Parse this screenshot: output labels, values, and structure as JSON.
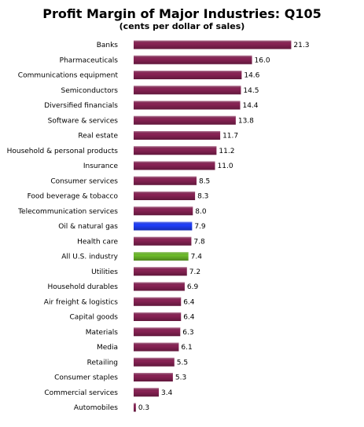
{
  "chart_data": {
    "type": "bar",
    "orientation": "horizontal",
    "title": "Profit Margin of Major Industries: Q105",
    "subtitle": "(cents per dollar of sales)",
    "xlim": [
      0,
      22
    ],
    "grid": false,
    "legend": "none",
    "colors": {
      "default": "#8b2356",
      "highlight_oil": "#1f3fff",
      "highlight_all": "#6fbf2a"
    },
    "categories": [
      "Banks",
      "Pharmaceuticals",
      "Communications equipment",
      "Semiconductors",
      "Diversified financials",
      "Software & services",
      "Real estate",
      "Household & personal products",
      "Insurance",
      "Consumer services",
      "Food beverage & tobacco",
      "Telecommunication services",
      "Oil & natural gas",
      "Health care",
      "All U.S. industry",
      "Utilities",
      "Household durables",
      "Air freight & logistics",
      "Capital goods",
      "Materials",
      "Media",
      "Retailing",
      "Consumer staples",
      "Commercial services",
      "Automobiles"
    ],
    "values": [
      21.3,
      16.0,
      14.6,
      14.5,
      14.4,
      13.8,
      11.7,
      11.2,
      11.0,
      8.5,
      8.3,
      8.0,
      7.9,
      7.8,
      7.4,
      7.2,
      6.9,
      6.4,
      6.4,
      6.3,
      6.1,
      5.5,
      5.3,
      3.4,
      0.3
    ],
    "value_labels": [
      "21.3",
      "16.0",
      "14.6",
      "14.5",
      "14.4",
      "13.8",
      "11.7",
      "11.2",
      "11.0",
      "8.5",
      "8.3",
      "8.0",
      "7.9",
      "7.8",
      "7.4",
      "7.2",
      "6.9",
      "6.4",
      "6.4",
      "6.3",
      "6.1",
      "5.5",
      "5.3",
      "3.4",
      "0.3"
    ],
    "highlights": {
      "Oil & natural gas": "highlight_oil",
      "All U.S. industry": "highlight_all"
    }
  }
}
